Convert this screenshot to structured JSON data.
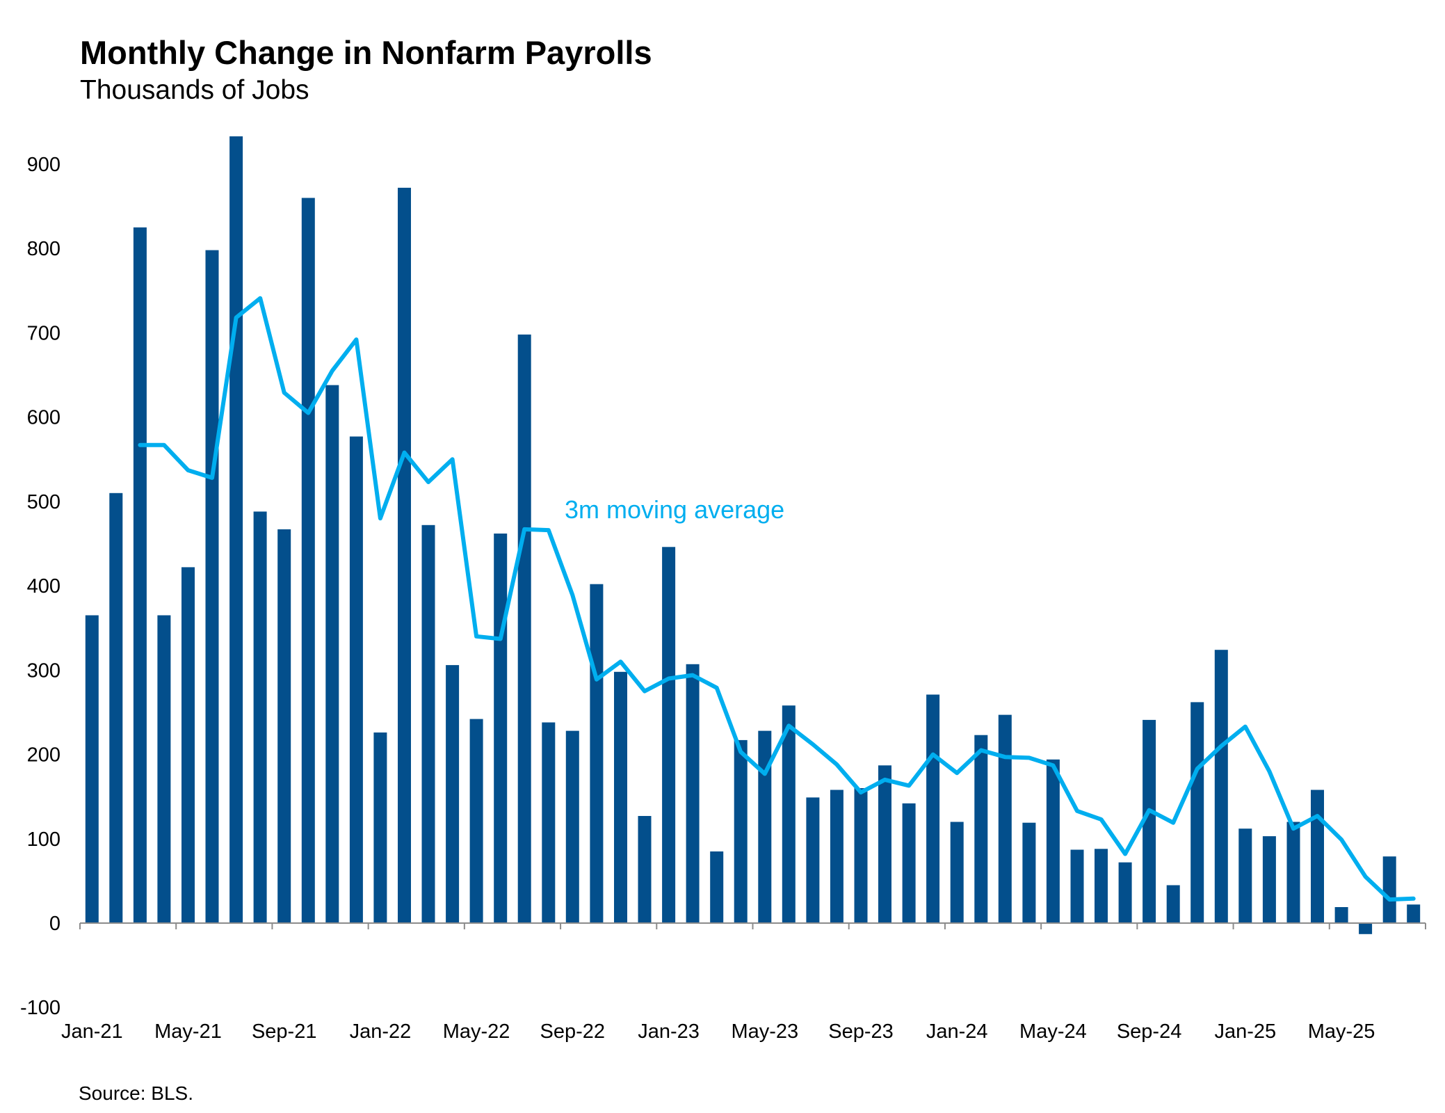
{
  "title": "Monthly Change in Nonfarm Payrolls",
  "subtitle": "Thousands of Jobs",
  "source": "Source: BLS.",
  "colors": {
    "bars": "#034f8c",
    "moving_average": "#00aeef",
    "axis": "#8c8c8c"
  },
  "chart_data": {
    "type": "bar",
    "title": "Monthly Change in Nonfarm Payrolls",
    "subtitle": "Thousands of Jobs",
    "xlabel": "",
    "ylabel": "",
    "ylim": [
      -100,
      900
    ],
    "yticks": [
      900,
      800,
      700,
      600,
      500,
      400,
      300,
      200,
      100,
      0,
      -100
    ],
    "grid": false,
    "x_tick_labels": [
      "Jan-21",
      "May-21",
      "Sep-21",
      "Jan-22",
      "May-22",
      "Sep-22",
      "Jan-23",
      "May-23",
      "Sep-23",
      "Jan-24",
      "May-24",
      "Sep-24",
      "Jan-25",
      "May-25"
    ],
    "categories": [
      "Jan-21",
      "Feb-21",
      "Mar-21",
      "Apr-21",
      "May-21",
      "Jun-21",
      "Jul-21",
      "Aug-21",
      "Sep-21",
      "Oct-21",
      "Nov-21",
      "Dec-21",
      "Jan-22",
      "Feb-22",
      "Mar-22",
      "Apr-22",
      "May-22",
      "Jun-22",
      "Jul-22",
      "Aug-22",
      "Sep-22",
      "Oct-22",
      "Nov-22",
      "Dec-22",
      "Jan-23",
      "Feb-23",
      "Mar-23",
      "Apr-23",
      "May-23",
      "Jun-23",
      "Jul-23",
      "Aug-23",
      "Sep-23",
      "Oct-23",
      "Nov-23",
      "Dec-23",
      "Jan-24",
      "Feb-24",
      "Mar-24",
      "Apr-24",
      "May-24",
      "Jun-24",
      "Jul-24",
      "Aug-24",
      "Sep-24",
      "Oct-24",
      "Nov-24",
      "Dec-24",
      "Jan-25",
      "Feb-25",
      "Mar-25",
      "Apr-25",
      "May-25",
      "Jun-25",
      "Jul-25",
      "Aug-25"
    ],
    "series": [
      {
        "type": "bar",
        "values": [
          365,
          510,
          825,
          365,
          422,
          798,
          933,
          488,
          467,
          860,
          638,
          577,
          226,
          872,
          472,
          306,
          242,
          462,
          698,
          238,
          228,
          402,
          298,
          127,
          446,
          307,
          85,
          217,
          228,
          258,
          149,
          158,
          160,
          187,
          142,
          271,
          120,
          223,
          247,
          119,
          194,
          87,
          88,
          72,
          241,
          45,
          262,
          324,
          112,
          103,
          120,
          158,
          19,
          -13,
          79,
          22
        ]
      },
      {
        "name": "3m moving average",
        "type": "line",
        "values": [
          null,
          null,
          567,
          567,
          537,
          528,
          718,
          741,
          629,
          605,
          655,
          692,
          480,
          558,
          523,
          550,
          340,
          337,
          467,
          466,
          389,
          289,
          310,
          275,
          290,
          294,
          279,
          203,
          177,
          234,
          212,
          188,
          155,
          170,
          163,
          200,
          178,
          205,
          197,
          196,
          187,
          133,
          123,
          82,
          134,
          119,
          183,
          210,
          233,
          180,
          112,
          127,
          99,
          55,
          28,
          29
        ]
      }
    ],
    "annotations": [
      {
        "text": "3m moving average"
      }
    ]
  }
}
